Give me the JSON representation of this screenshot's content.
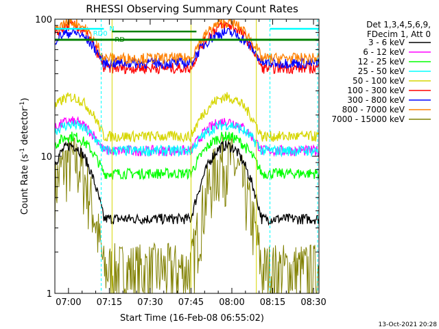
{
  "chart_data": {
    "type": "line",
    "title": "RHESSI Observing Summary Count Rates",
    "xlabel": "Start Time (16-Feb-08 06:55:02)",
    "ylabel_parts": {
      "prefix": "Count Rate (s",
      "exp": "-1",
      "suffix": " detector",
      "exp2": "-1",
      "end": ")"
    },
    "y_scale": "log",
    "ylim": [
      1,
      100
    ],
    "xlim_minutes": [
      0,
      97
    ],
    "x_tick_labels": [
      "07:00",
      "07:15",
      "07:30",
      "07:45",
      "08:00",
      "08:15",
      "08:30"
    ],
    "x_tick_minutes": [
      5,
      20,
      35,
      50,
      65,
      80,
      95
    ],
    "y_tick_labels": [
      "1",
      "10",
      "100"
    ],
    "y_tick_values": [
      1,
      10,
      100
    ],
    "legend_header": [
      "Det 1,3,4,5,6,9,",
      "FDecim 1, Att 0"
    ],
    "series": [
      {
        "name": "3 - 6 keV",
        "color": "#000000",
        "day": 12,
        "night": 3.5
      },
      {
        "name": "6 - 12 keV",
        "color": "#ff00ff",
        "day": 18,
        "night": 11
      },
      {
        "name": "12 - 25 keV",
        "color": "#00ff00",
        "day": 14,
        "night": 7.5
      },
      {
        "name": "25 - 50 keV",
        "color": "#00ffff",
        "day": 17,
        "night": 11
      },
      {
        "name": "50 - 100 keV",
        "color": "#d6d600",
        "day": 27,
        "night": 14
      },
      {
        "name": "100 - 300 keV",
        "color": "#ff0000",
        "day": 90,
        "night": 44
      },
      {
        "name": "300 - 800 keV",
        "color": "#0000ff",
        "day": 80,
        "night": 48
      },
      {
        "name": "800 - 7000 keV",
        "color": "#ff8000",
        "day": 95,
        "night": 52
      },
      {
        "name": "7000 - 15000 keV",
        "color": "#808000",
        "day": 9.5,
        "night": 1.5
      }
    ],
    "annotations": [
      {
        "text": "RD0",
        "color": "#00ffff"
      },
      {
        "text": "N",
        "color": "#00ffff"
      },
      {
        "text": "RD",
        "color": "#008000"
      }
    ],
    "footer": "13-Oct-2021 20:28"
  }
}
